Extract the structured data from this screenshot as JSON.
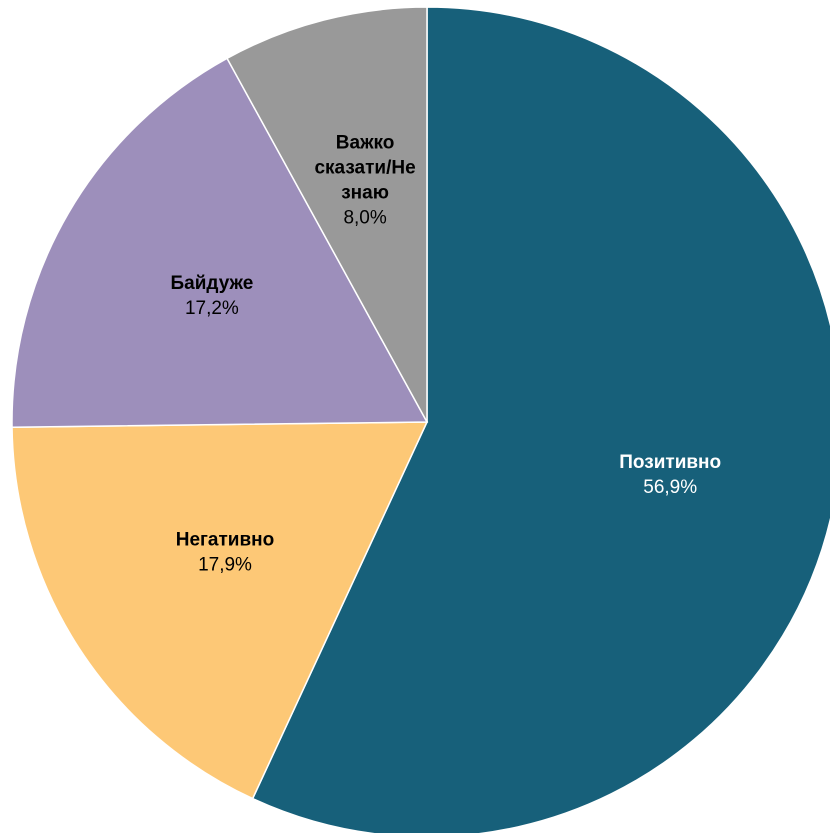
{
  "chart_data": {
    "type": "pie",
    "slices": [
      {
        "label": "Позитивно",
        "label_lines": [
          "Позитивно"
        ],
        "value": 56.9,
        "value_label": "56,9%",
        "color": "#17607a",
        "text_color": "#ffffff"
      },
      {
        "label": "Негативно",
        "label_lines": [
          "Негативно"
        ],
        "value": 17.9,
        "value_label": "17,9%",
        "color": "#fdc876",
        "text_color": "#000000"
      },
      {
        "label": "Байдуже",
        "label_lines": [
          "Байдуже"
        ],
        "value": 17.2,
        "value_label": "17,2%",
        "color": "#9d8fbb",
        "text_color": "#000000"
      },
      {
        "label": "Важко сказати/Не знаю",
        "label_lines": [
          "Важко",
          "сказати/Не",
          "знаю"
        ],
        "value": 8.0,
        "value_label": "8,0%",
        "color": "#999999",
        "text_color": "#000000"
      }
    ],
    "start": "12 o'clock",
    "direction": "clockwise",
    "legend": "none",
    "labels": "inside slices"
  }
}
